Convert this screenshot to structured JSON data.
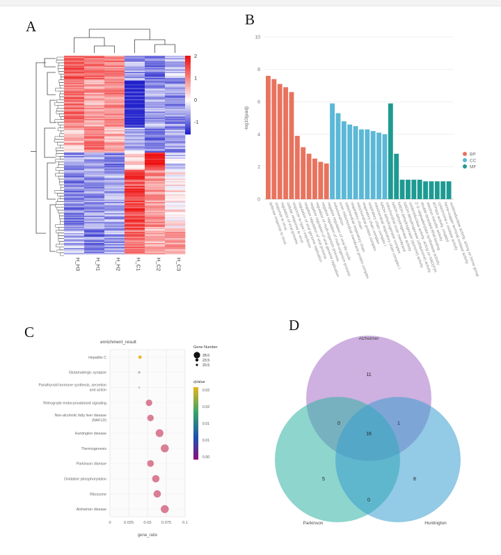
{
  "panels": {
    "a": "A",
    "b": "B",
    "c": "C",
    "d": "D"
  },
  "chart_data": [
    {
      "panel": "A",
      "type": "heatmap",
      "columns": [
        "H_H3",
        "H_H1",
        "H_H2",
        "H_C1",
        "H_C2",
        "H_C3"
      ],
      "colorbar_ticks": [
        "2",
        "1",
        "0",
        "-1"
      ],
      "colorscale": [
        "#2222cc",
        "#ffffff",
        "#ee1111"
      ],
      "value_range": [
        -1.5,
        2
      ]
    },
    {
      "panel": "B",
      "type": "bar",
      "ylabel": "-log10(padj)",
      "ylim": [
        0,
        10
      ],
      "y_ticks": [
        "0",
        "2",
        "4",
        "6",
        "8",
        "10"
      ],
      "legend": [
        "BP",
        "CC",
        "MF"
      ],
      "colors": {
        "BP": "#e8735e",
        "CC": "#5bb8d6",
        "MF": "#1d9a92"
      },
      "series": [
        {
          "name": "BP",
          "categories": [
            "defense response to virus",
            "response to virus",
            "regulation of viral process",
            "cellular response to virus",
            "response to type I interferon",
            "regulation of viral genome replication",
            "negative regulation of viral process",
            "negative regulation of viral genome replication",
            "regulation of multi-organism process",
            "negative regulation of multi-organism process",
            "negative regulation of viral life cycle"
          ],
          "values": [
            7.6,
            7.4,
            7.1,
            6.9,
            6.6,
            3.9,
            3.2,
            2.8,
            2.5,
            2.3,
            2.2
          ]
        },
        {
          "name": "CC",
          "categories": [
            "mitochondrion",
            "inner mitochondrial membrane protein complex",
            "mitochondrial respiratory chain",
            "respiratory chain",
            "mitochondrial protein complex",
            "respiratory chain complex",
            "respiratory chain complex I",
            "mitochondrial respiratory chain complex I",
            "NADH dehydrogenase complex",
            "mitochondrial inner membrane"
          ],
          "values": [
            5.9,
            5.3,
            4.8,
            4.6,
            4.5,
            4.3,
            4.3,
            4.2,
            4.1,
            4.0
          ]
        },
        {
          "name": "MF",
          "categories": [
            "NADH dehydrogenase activity",
            "NADH dehydrogenase (quinone) activity",
            "NADH dehydrogenase (ubiquinone) activity",
            "oxidoreductase activity, acting on NAD(P)H",
            "2'-5'-oligoadenylate synthetase activity",
            "double-stranded RNA binding",
            "electron transfer activity",
            "ATPase activity, coupled",
            "cytochrome-c oxidase activity",
            "heme-copper terminal oxidase activity",
            "oxidoreductase activity, acting on heme group"
          ],
          "values": [
            5.9,
            2.8,
            1.2,
            1.2,
            1.2,
            1.2,
            1.1,
            1.1,
            1.1,
            1.1,
            1.1
          ]
        }
      ]
    },
    {
      "panel": "C",
      "type": "scatter",
      "title": "enrichment_result",
      "xlabel": "gene_ratio",
      "xlim": [
        0,
        0.1
      ],
      "x_ticks": [
        "0",
        "0.025",
        "0.05",
        "0.075",
        "0.1"
      ],
      "size_legend_title": "Gene Number",
      "size_legend_items": [
        "28.0",
        "23.5",
        "20.5"
      ],
      "color_legend_title": "qValue",
      "color_legend_ticks": [
        "0.02",
        "0.02",
        "0.01",
        "0.01",
        "0.00"
      ],
      "colorscale": [
        "#e7b41c",
        "#37a36a",
        "#1f4fb0",
        "#8e0f7a"
      ],
      "categories": [
        "Hepatitis C",
        "Glutamatergic synapse",
        "Parathyroid hormone synthesis, secretion and action",
        "Retrograde endocannabinoid signaling",
        "Non-alcoholic fatty liver disease (NAFLD)",
        "Huntington disease",
        "Thermogenesis",
        "Parkinson disease",
        "Oxidative phosphorylation",
        "Ribosome",
        "Alzheimer disease"
      ],
      "x": [
        0.04,
        0.039,
        0.039,
        0.052,
        0.054,
        0.066,
        0.073,
        0.054,
        0.061,
        0.063,
        0.073
      ],
      "size": [
        4,
        2,
        1,
        14,
        14,
        20,
        21,
        15,
        18,
        18,
        21
      ],
      "marker_colors": [
        "#e7b41c",
        "#b8b8b8",
        "#b8b8b8",
        "#d6708a",
        "#d6708a",
        "#d6708a",
        "#d6708a",
        "#d6708a",
        "#d6708a",
        "#d6708a",
        "#d6708a"
      ]
    },
    {
      "panel": "D",
      "type": "venn",
      "sets": [
        {
          "name": "Alzheimer",
          "color": "#a66fc9"
        },
        {
          "name": "Parkinson",
          "color": "#2fb3a4"
        },
        {
          "name": "Huntington",
          "color": "#3a9fd0"
        }
      ],
      "regions": {
        "a_only": "11",
        "ap": "0",
        "ah": "1",
        "aph": "16",
        "p_only": "5",
        "h_only": "8",
        "ph": "0"
      }
    }
  ]
}
